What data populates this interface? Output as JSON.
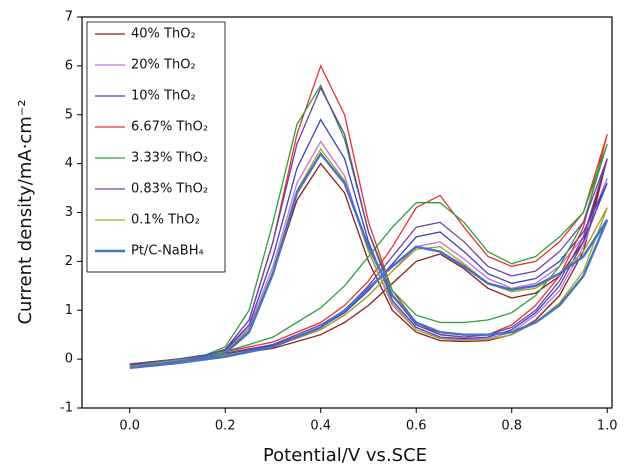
{
  "chart_data": {
    "type": "line",
    "xlabel": "Potential/V vs.SCE",
    "ylabel": "Current density/mA·cm⁻²",
    "xlim": [
      -0.1,
      1.01
    ],
    "ylim": [
      -1,
      7
    ],
    "xticks": [
      {
        "value": 0,
        "label": "0.0"
      },
      0.2,
      0.4,
      0.6,
      0.8,
      {
        "value": 1,
        "label": "1.0"
      }
    ],
    "yticks": [
      -1,
      0,
      1,
      2,
      3,
      4,
      5,
      6,
      7
    ],
    "legend": "upper left",
    "x": [
      0,
      0.1,
      0.15,
      0.2,
      0.25,
      0.3,
      0.35,
      0.4,
      0.45,
      0.5,
      0.55,
      0.6,
      0.65,
      0.7,
      0.75,
      0.8,
      0.85,
      0.9,
      0.95,
      1.0,
      0.95,
      0.9,
      0.85,
      0.8,
      0.75,
      0.7,
      0.65,
      0.6,
      0.55,
      0.5,
      0.45,
      0.4,
      0.3,
      0.2,
      0.1,
      0
    ],
    "series": [
      {
        "name": "40% ThO₂",
        "color": "#8b1c1c",
        "values": [
          -0.12,
          0,
          0.05,
          0.16,
          0.6,
          1.75,
          3.25,
          4.0,
          3.4,
          2.0,
          1.0,
          0.55,
          0.38,
          0.36,
          0.38,
          0.5,
          0.8,
          1.3,
          2.2,
          4.1,
          2.4,
          1.7,
          1.35,
          1.25,
          1.45,
          1.85,
          2.15,
          2.0,
          1.55,
          1.1,
          0.75,
          0.5,
          0.22,
          0.08,
          -0.03,
          -0.12
        ]
      },
      {
        "name": "20% ThO₂",
        "color": "#c46fd6",
        "values": [
          -0.12,
          0,
          0.05,
          0.18,
          0.65,
          1.9,
          3.6,
          4.45,
          3.75,
          2.2,
          1.1,
          0.6,
          0.42,
          0.4,
          0.42,
          0.55,
          0.9,
          1.4,
          2.3,
          3.7,
          2.5,
          1.9,
          1.55,
          1.45,
          1.65,
          2.05,
          2.4,
          2.3,
          1.8,
          1.3,
          0.9,
          0.6,
          0.26,
          0.1,
          -0.02,
          -0.12
        ]
      },
      {
        "name": "10% ThO₂",
        "color": "#3f3fbf",
        "values": [
          -0.12,
          0,
          0.05,
          0.18,
          0.7,
          2.1,
          3.9,
          4.9,
          4.1,
          2.4,
          1.2,
          0.65,
          0.45,
          0.42,
          0.45,
          0.6,
          0.95,
          1.5,
          2.4,
          3.6,
          2.6,
          2.0,
          1.65,
          1.55,
          1.75,
          2.2,
          2.6,
          2.5,
          1.95,
          1.4,
          0.95,
          0.65,
          0.28,
          0.1,
          -0.02,
          -0.12
        ]
      },
      {
        "name": "6.67% ThO₂",
        "color": "#e53232",
        "values": [
          -0.1,
          0,
          0.05,
          0.2,
          0.8,
          2.4,
          4.6,
          6.0,
          5.0,
          2.8,
          1.4,
          0.75,
          0.5,
          0.45,
          0.5,
          0.7,
          1.1,
          1.7,
          2.7,
          4.6,
          3.0,
          2.4,
          2.0,
          1.9,
          2.1,
          2.7,
          3.35,
          3.1,
          2.3,
          1.6,
          1.1,
          0.75,
          0.35,
          0.15,
          0,
          -0.1
        ]
      },
      {
        "name": "3.33% ThO₂",
        "color": "#2f9e3f",
        "values": [
          -0.1,
          0,
          0.05,
          0.25,
          1.0,
          2.8,
          4.8,
          5.6,
          4.5,
          2.6,
          1.4,
          0.9,
          0.75,
          0.75,
          0.8,
          0.95,
          1.3,
          1.9,
          2.8,
          4.4,
          3.0,
          2.5,
          2.1,
          1.95,
          2.2,
          2.8,
          3.2,
          3.2,
          2.7,
          2.1,
          1.5,
          1.05,
          0.45,
          0.15,
          0,
          -0.1
        ]
      },
      {
        "name": "0.83% ThO₂",
        "color": "#6e3fa3",
        "values": [
          -0.1,
          0,
          0.05,
          0.2,
          0.8,
          2.4,
          4.4,
          5.55,
          4.6,
          2.6,
          1.3,
          0.7,
          0.5,
          0.45,
          0.5,
          0.65,
          1.0,
          1.6,
          2.5,
          4.1,
          2.8,
          2.2,
          1.8,
          1.7,
          1.9,
          2.4,
          2.8,
          2.7,
          2.1,
          1.5,
          1.0,
          0.7,
          0.3,
          0.12,
          0,
          -0.1
        ]
      },
      {
        "name": "0.1% ThO₂",
        "color": "#a3a321",
        "values": [
          -0.15,
          -0.02,
          0.03,
          0.15,
          0.6,
          1.8,
          3.45,
          4.3,
          3.65,
          2.2,
          1.15,
          0.6,
          0.42,
          0.38,
          0.4,
          0.5,
          0.75,
          1.15,
          1.8,
          3.1,
          2.2,
          1.75,
          1.45,
          1.38,
          1.55,
          1.95,
          2.3,
          2.25,
          1.8,
          1.3,
          0.9,
          0.6,
          0.25,
          0.08,
          -0.05,
          -0.15
        ]
      },
      {
        "name": "Pt/C-NaBH₄",
        "color": "#4472c4",
        "values": [
          -0.18,
          -0.05,
          0.02,
          0.12,
          0.55,
          1.75,
          3.4,
          4.2,
          3.6,
          2.3,
          1.3,
          0.75,
          0.55,
          0.5,
          0.5,
          0.55,
          0.75,
          1.1,
          1.7,
          2.85,
          2.1,
          1.75,
          1.5,
          1.42,
          1.55,
          1.9,
          2.2,
          2.3,
          1.9,
          1.45,
          1.0,
          0.65,
          0.25,
          0.05,
          -0.08,
          -0.18
        ]
      }
    ]
  }
}
